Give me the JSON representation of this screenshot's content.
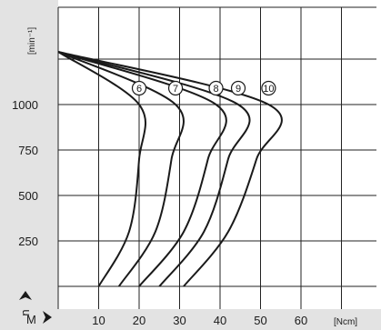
{
  "colors": {
    "axis_band": "#e3e3e3",
    "grid": "#222222",
    "curve": "#1a1a1a",
    "background": "#ffffff"
  },
  "chart_data": {
    "type": "line",
    "y_unit_label": "[min⁻¹]",
    "y_axis_symbol": "n",
    "y_ticks": [
      250,
      500,
      750,
      1000
    ],
    "x_axis_symbol": "M",
    "x_unit_label": "[Ncm]",
    "x_ticks": [
      10,
      20,
      30,
      40,
      50,
      60
    ],
    "xlim": [
      0,
      70
    ],
    "ylim": [
      0,
      1300
    ],
    "grid": true,
    "series": [
      {
        "name": "6",
        "points": [
          [
            0,
            1290
          ],
          [
            20,
            1000
          ],
          [
            20,
            700
          ],
          [
            17.5,
            300
          ],
          [
            10,
            0
          ]
        ]
      },
      {
        "name": "7",
        "points": [
          [
            0,
            1290
          ],
          [
            29,
            1000
          ],
          [
            28,
            700
          ],
          [
            24,
            300
          ],
          [
            15,
            0
          ]
        ]
      },
      {
        "name": "8",
        "points": [
          [
            0,
            1290
          ],
          [
            39,
            1000
          ],
          [
            37,
            700
          ],
          [
            31,
            300
          ],
          [
            20,
            0
          ]
        ]
      },
      {
        "name": "9",
        "points": [
          [
            0,
            1290
          ],
          [
            44.5,
            1000
          ],
          [
            42,
            700
          ],
          [
            36,
            300
          ],
          [
            25,
            0
          ]
        ]
      },
      {
        "name": "10",
        "points": [
          [
            0,
            1290
          ],
          [
            52,
            1000
          ],
          [
            49,
            700
          ],
          [
            42,
            300
          ],
          [
            31,
            0
          ]
        ]
      }
    ]
  }
}
